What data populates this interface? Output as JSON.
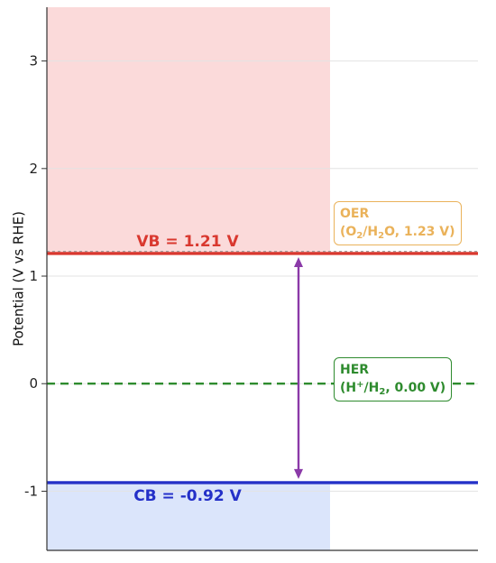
{
  "chart_data": {
    "type": "band-diagram",
    "ylabel": "Potential (V vs RHE)",
    "ylim": [
      -1.55,
      3.5
    ],
    "yticks": [
      -1,
      0,
      1,
      2,
      3
    ],
    "ytick_labels": [
      "-1",
      "0",
      "1",
      "2",
      "3"
    ],
    "grid": true,
    "levels": [
      {
        "name": "VB",
        "value": 1.21,
        "label": "VB = 1.21 V",
        "color": "#d9382f",
        "style": "solid"
      },
      {
        "name": "CB",
        "value": -0.92,
        "label": "CB = -0.92 V",
        "color": "#2430c8",
        "style": "solid"
      },
      {
        "name": "HER",
        "value": 0.0,
        "color": "#2e8b2e",
        "style": "dashed"
      },
      {
        "name": "OER",
        "value": 1.23,
        "color": "#a0a0a0",
        "style": "dotted"
      }
    ],
    "annotations": [
      {
        "title": "OER",
        "species": [
          "O",
          "2",
          "/H",
          "2",
          "O"
        ],
        "value_text": ", 1.23 V)",
        "color": "#eab25a",
        "y": 1.23
      },
      {
        "title": "HER",
        "species": [
          "H",
          "+",
          "/H",
          "2",
          ""
        ],
        "value_text": ", 0.00 V)",
        "color": "#2e8b2e",
        "y": 0.0
      }
    ],
    "band_gap_arrow": {
      "from": -0.92,
      "to": 1.21,
      "color": "#8b3aa8"
    },
    "shaded_regions": [
      {
        "from": 1.21,
        "to": 3.5,
        "color": "#fbdada"
      },
      {
        "from": -1.55,
        "to": -0.92,
        "color": "#dbe5fb"
      }
    ]
  }
}
